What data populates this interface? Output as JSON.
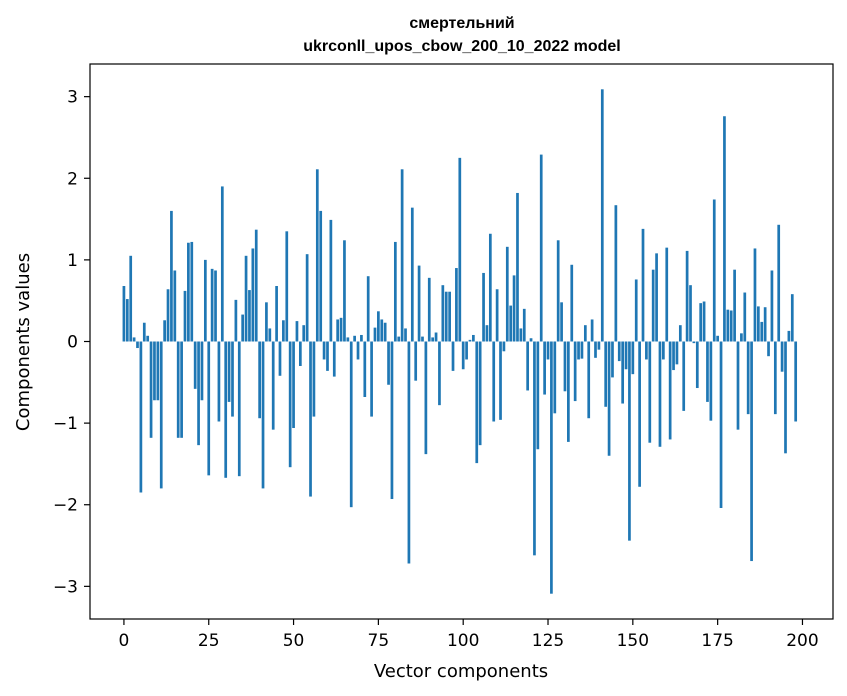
{
  "chart_data": {
    "type": "bar",
    "title_line1": "смертельний",
    "title_line2": "ukrconll_upos_cbow_200_10_2022 model",
    "xlabel": "Vector components",
    "ylabel": "Components values",
    "xlim": [
      -10,
      209
    ],
    "ylim": [
      -3.4,
      3.4
    ],
    "x_ticks": [
      0,
      25,
      50,
      75,
      100,
      125,
      150,
      175,
      200
    ],
    "x_tick_labels": [
      "0",
      "25",
      "50",
      "75",
      "100",
      "125",
      "150",
      "175",
      "200"
    ],
    "y_ticks": [
      -3,
      -2,
      -1,
      0,
      1,
      2,
      3
    ],
    "y_tick_labels": [
      "−3",
      "−2",
      "−1",
      "0",
      "1",
      "2",
      "3"
    ],
    "bar_color": "#1f77b4",
    "grid": false,
    "values": [
      0.68,
      0.52,
      1.05,
      0.05,
      -0.08,
      -1.85,
      0.23,
      0.07,
      -1.18,
      -0.72,
      -0.72,
      -1.8,
      0.26,
      0.64,
      1.6,
      0.87,
      -1.18,
      -1.18,
      0.62,
      1.21,
      1.22,
      -0.58,
      -1.27,
      -0.72,
      1.0,
      -1.64,
      0.89,
      0.87,
      -0.98,
      1.9,
      -1.67,
      -0.74,
      -0.92,
      0.51,
      -1.65,
      0.33,
      1.05,
      0.63,
      1.14,
      1.37,
      -0.94,
      -1.8,
      0.48,
      0.16,
      -1.08,
      0.68,
      -0.42,
      0.26,
      1.35,
      -1.54,
      -1.06,
      0.25,
      -0.3,
      0.2,
      1.07,
      -1.9,
      -0.92,
      2.11,
      1.6,
      -0.22,
      -0.36,
      1.49,
      -0.43,
      0.27,
      0.29,
      1.24,
      0.05,
      -2.03,
      0.07,
      -0.22,
      0.08,
      -0.68,
      0.8,
      -0.92,
      0.17,
      0.37,
      0.27,
      0.23,
      -0.53,
      -1.93,
      1.22,
      0.06,
      2.11,
      0.16,
      -2.72,
      1.64,
      -0.48,
      0.93,
      0.06,
      -1.38,
      0.78,
      0.05,
      0.11,
      -0.78,
      0.69,
      0.61,
      0.61,
      -0.36,
      0.9,
      2.25,
      -0.34,
      -0.22,
      0.02,
      0.08,
      -1.49,
      -1.27,
      0.84,
      0.2,
      1.32,
      -0.98,
      0.64,
      -0.96,
      -0.12,
      1.16,
      0.44,
      0.81,
      1.82,
      0.16,
      0.4,
      -0.6,
      0.04,
      -2.62,
      -1.32,
      2.29,
      -0.65,
      -0.22,
      -3.09,
      -0.88,
      1.24,
      0.48,
      -0.61,
      -1.23,
      0.94,
      -0.73,
      -0.22,
      -0.21,
      0.2,
      -0.94,
      0.27,
      -0.2,
      -0.1,
      3.09,
      -0.8,
      -1.4,
      -0.44,
      1.67,
      -0.24,
      -0.76,
      -0.34,
      -2.44,
      -0.4,
      0.76,
      -1.78,
      1.38,
      -0.22,
      -1.24,
      0.88,
      1.08,
      -1.29,
      -0.22,
      1.15,
      -1.2,
      -0.35,
      -0.28,
      0.2,
      -0.85,
      1.11,
      0.69,
      -0.02,
      -0.57,
      0.47,
      0.49,
      -0.74,
      -0.97,
      1.74,
      0.07,
      -2.04,
      2.76,
      0.39,
      0.38,
      0.88,
      -1.08,
      0.1,
      0.6,
      -0.89,
      -2.69,
      1.14,
      0.43,
      0.24,
      0.42,
      -0.18,
      0.87,
      -0.89,
      1.43,
      -0.37,
      -1.37,
      0.13,
      0.58,
      -0.98
    ]
  }
}
